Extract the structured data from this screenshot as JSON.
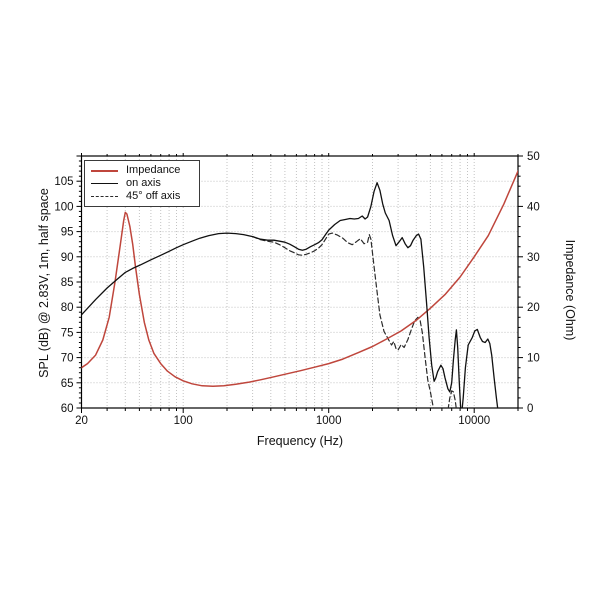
{
  "chart_data": {
    "type": "line",
    "xlabel": "Frequency (Hz)",
    "ylabel_left": "SPL (dB) @ 2.83V, 1m, half space",
    "ylabel_right": "Impedance (Ohm)",
    "x_scale": "log",
    "x_range": [
      20,
      20000
    ],
    "y_left_range": [
      60,
      110
    ],
    "y_right_range": [
      0,
      50
    ],
    "grid": "dotted",
    "legend_position": "top-left",
    "x_ticks": {
      "values": [
        20,
        100,
        1000,
        10000
      ],
      "labels": [
        "20",
        "100",
        "1000",
        "10000"
      ]
    },
    "y_left_ticks": {
      "values": [
        60,
        65,
        70,
        75,
        80,
        85,
        90,
        95,
        100,
        105
      ],
      "labels": [
        "60",
        "65",
        "70",
        "75",
        "80",
        "85",
        "90",
        "95",
        "100",
        "105"
      ]
    },
    "y_right_ticks": {
      "values": [
        0,
        10,
        20,
        30,
        40,
        50
      ],
      "labels": [
        "0",
        "10",
        "20",
        "30",
        "40",
        "50"
      ]
    },
    "legend": [
      {
        "label": "Impedance",
        "style": "solid-red"
      },
      {
        "label": "on axis",
        "style": "solid-black"
      },
      {
        "label": "45° off axis",
        "style": "dashed-black"
      }
    ],
    "colors": {
      "impedance": "#bf463c",
      "on_axis": "#111111",
      "off_axis": "#2b2b2b",
      "grid": "#c3c3c3",
      "frame": "#000000"
    },
    "series": [
      {
        "name": "Impedance",
        "axis": "right",
        "unit": "Ohm",
        "points": [
          [
            20,
            8.0
          ],
          [
            22,
            8.8
          ],
          [
            25,
            10.5
          ],
          [
            28,
            13.5
          ],
          [
            31,
            18.0
          ],
          [
            34,
            25.0
          ],
          [
            37,
            32.5
          ],
          [
            39,
            37.2
          ],
          [
            40,
            38.8
          ],
          [
            41,
            38.5
          ],
          [
            43,
            36.0
          ],
          [
            45,
            32.5
          ],
          [
            47,
            28.0
          ],
          [
            50,
            22.5
          ],
          [
            54,
            17.0
          ],
          [
            58,
            13.5
          ],
          [
            63,
            10.8
          ],
          [
            70,
            8.8
          ],
          [
            78,
            7.3
          ],
          [
            88,
            6.2
          ],
          [
            100,
            5.4
          ],
          [
            115,
            4.8
          ],
          [
            135,
            4.4
          ],
          [
            160,
            4.3
          ],
          [
            190,
            4.4
          ],
          [
            230,
            4.7
          ],
          [
            280,
            5.1
          ],
          [
            340,
            5.6
          ],
          [
            420,
            6.2
          ],
          [
            520,
            6.8
          ],
          [
            640,
            7.4
          ],
          [
            800,
            8.1
          ],
          [
            1000,
            8.8
          ],
          [
            1250,
            9.7
          ],
          [
            1600,
            11.0
          ],
          [
            2000,
            12.2
          ],
          [
            2500,
            13.7
          ],
          [
            3150,
            15.3
          ],
          [
            4000,
            17.4
          ],
          [
            5000,
            19.8
          ],
          [
            6300,
            22.5
          ],
          [
            8000,
            26.0
          ],
          [
            10000,
            30.0
          ],
          [
            12500,
            34.2
          ],
          [
            16000,
            40.5
          ],
          [
            20000,
            47.0
          ]
        ]
      },
      {
        "name": "on axis",
        "axis": "left",
        "unit": "dB",
        "points": [
          [
            20,
            78.5
          ],
          [
            25,
            81.5
          ],
          [
            30,
            83.8
          ],
          [
            35,
            85.5
          ],
          [
            40,
            86.9
          ],
          [
            45,
            87.7
          ],
          [
            50,
            88.3
          ],
          [
            60,
            89.4
          ],
          [
            70,
            90.3
          ],
          [
            80,
            91.1
          ],
          [
            90,
            91.8
          ],
          [
            100,
            92.4
          ],
          [
            115,
            93.1
          ],
          [
            130,
            93.7
          ],
          [
            150,
            94.2
          ],
          [
            175,
            94.6
          ],
          [
            200,
            94.7
          ],
          [
            230,
            94.6
          ],
          [
            260,
            94.4
          ],
          [
            300,
            94.0
          ],
          [
            340,
            93.5
          ],
          [
            380,
            93.3
          ],
          [
            420,
            93.3
          ],
          [
            460,
            93.1
          ],
          [
            500,
            92.9
          ],
          [
            540,
            92.5
          ],
          [
            580,
            92.0
          ],
          [
            620,
            91.5
          ],
          [
            660,
            91.3
          ],
          [
            700,
            91.5
          ],
          [
            750,
            92.0
          ],
          [
            800,
            92.4
          ],
          [
            850,
            92.8
          ],
          [
            900,
            93.4
          ],
          [
            950,
            94.4
          ],
          [
            1000,
            95.3
          ],
          [
            1100,
            96.4
          ],
          [
            1200,
            97.2
          ],
          [
            1300,
            97.4
          ],
          [
            1400,
            97.6
          ],
          [
            1500,
            97.5
          ],
          [
            1600,
            97.6
          ],
          [
            1700,
            98.1
          ],
          [
            1780,
            97.5
          ],
          [
            1850,
            97.9
          ],
          [
            1950,
            100.0
          ],
          [
            2050,
            103.0
          ],
          [
            2150,
            104.7
          ],
          [
            2250,
            103.2
          ],
          [
            2350,
            100.5
          ],
          [
            2450,
            98.7
          ],
          [
            2600,
            97.2
          ],
          [
            2750,
            94.2
          ],
          [
            2900,
            92.2
          ],
          [
            3050,
            93.0
          ],
          [
            3200,
            93.8
          ],
          [
            3350,
            92.6
          ],
          [
            3500,
            91.8
          ],
          [
            3650,
            92.2
          ],
          [
            3800,
            93.3
          ],
          [
            4000,
            94.2
          ],
          [
            4150,
            94.5
          ],
          [
            4300,
            93.5
          ],
          [
            4500,
            88.0
          ],
          [
            4700,
            81.0
          ],
          [
            4900,
            74.0
          ],
          [
            5100,
            68.5
          ],
          [
            5300,
            65.3
          ],
          [
            5450,
            66.0
          ],
          [
            5600,
            67.2
          ],
          [
            5900,
            68.5
          ],
          [
            6100,
            67.8
          ],
          [
            6300,
            66.0
          ],
          [
            6600,
            63.8
          ],
          [
            6800,
            63.2
          ],
          [
            7000,
            65.0
          ],
          [
            7200,
            69.5
          ],
          [
            7400,
            73.5
          ],
          [
            7550,
            75.5
          ],
          [
            7700,
            72.0
          ],
          [
            7900,
            65.0
          ],
          [
            8050,
            60.5
          ],
          [
            8150,
            58.8
          ],
          [
            8250,
            59.5
          ],
          [
            8400,
            62.0
          ],
          [
            8700,
            68.0
          ],
          [
            9100,
            72.5
          ],
          [
            9700,
            74.0
          ],
          [
            10100,
            75.3
          ],
          [
            10500,
            75.6
          ],
          [
            11000,
            74.0
          ],
          [
            11400,
            73.2
          ],
          [
            11900,
            73.0
          ],
          [
            12400,
            73.7
          ],
          [
            12800,
            72.8
          ],
          [
            13200,
            70.5
          ],
          [
            13700,
            66.0
          ],
          [
            14200,
            62.0
          ],
          [
            14600,
            59.3
          ]
        ]
      },
      {
        "name": "45° off axis",
        "axis": "left",
        "unit": "dB",
        "points": [
          [
            300,
            94.0
          ],
          [
            340,
            93.4
          ],
          [
            380,
            93.1
          ],
          [
            420,
            92.9
          ],
          [
            460,
            92.4
          ],
          [
            500,
            91.8
          ],
          [
            540,
            91.2
          ],
          [
            580,
            90.8
          ],
          [
            620,
            90.4
          ],
          [
            660,
            90.3
          ],
          [
            700,
            90.5
          ],
          [
            750,
            90.8
          ],
          [
            800,
            91.2
          ],
          [
            850,
            91.7
          ],
          [
            900,
            92.4
          ],
          [
            950,
            93.5
          ],
          [
            1000,
            94.5
          ],
          [
            1060,
            94.7
          ],
          [
            1150,
            94.3
          ],
          [
            1250,
            93.7
          ],
          [
            1350,
            92.8
          ],
          [
            1450,
            92.4
          ],
          [
            1550,
            93.0
          ],
          [
            1650,
            93.6
          ],
          [
            1750,
            92.6
          ],
          [
            1850,
            92.9
          ],
          [
            1900,
            94.4
          ],
          [
            1950,
            93.5
          ],
          [
            2050,
            88.0
          ],
          [
            2150,
            83.0
          ],
          [
            2250,
            78.5
          ],
          [
            2400,
            75.2
          ],
          [
            2550,
            73.8
          ],
          [
            2700,
            72.5
          ],
          [
            2800,
            73.2
          ],
          [
            2900,
            71.8
          ],
          [
            3000,
            71.5
          ],
          [
            3150,
            72.6
          ],
          [
            3300,
            72.0
          ],
          [
            3500,
            73.6
          ],
          [
            3700,
            75.6
          ],
          [
            3900,
            77.3
          ],
          [
            4100,
            78.0
          ],
          [
            4250,
            77.4
          ],
          [
            4400,
            75.0
          ],
          [
            4600,
            70.0
          ],
          [
            4800,
            65.5
          ],
          [
            5000,
            63.2
          ],
          [
            5200,
            60.5
          ],
          [
            5400,
            58.5
          ],
          [
            5600,
            56.0
          ],
          [
            6400,
            56.0
          ],
          [
            6600,
            59.5
          ],
          [
            6800,
            62.0
          ],
          [
            7000,
            63.4
          ],
          [
            7200,
            63.2
          ],
          [
            7400,
            61.5
          ],
          [
            7600,
            59.0
          ],
          [
            7800,
            56.0
          ],
          [
            8700,
            56.0
          ],
          [
            8950,
            59.0
          ],
          [
            9200,
            60.3
          ],
          [
            9450,
            59.0
          ],
          [
            9650,
            56.0
          ]
        ]
      }
    ]
  }
}
